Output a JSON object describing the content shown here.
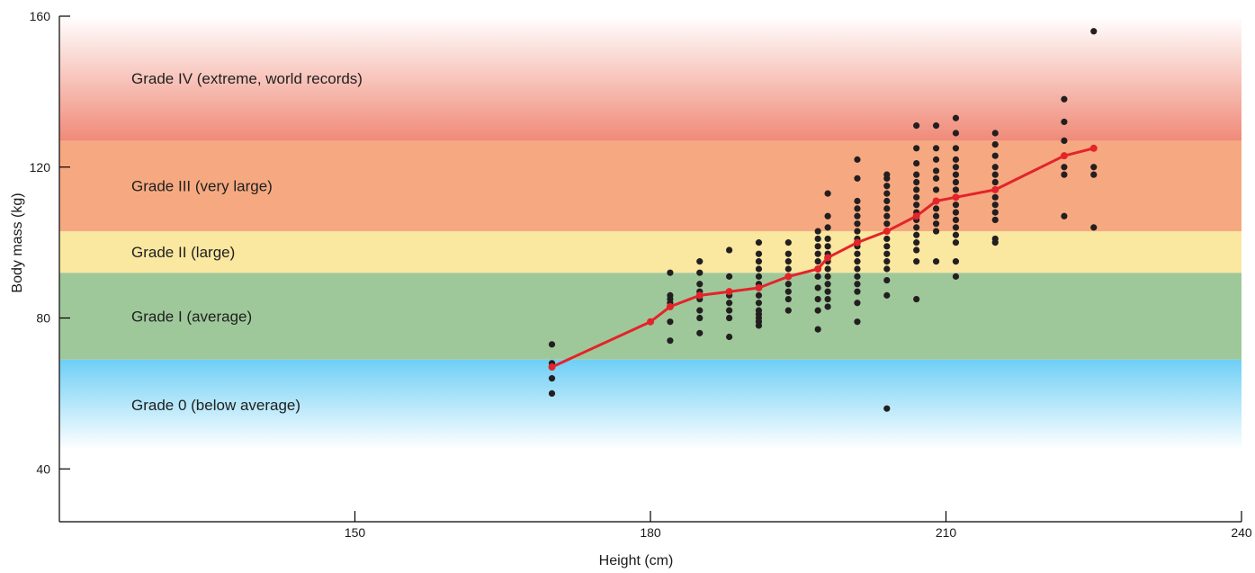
{
  "chart_data": {
    "type": "scatter",
    "xlabel": "Height (cm)",
    "ylabel": "Body mass (kg)",
    "xlim": [
      120,
      240
    ],
    "ylim": [
      26,
      160
    ],
    "x_ticks": [
      150,
      180,
      210,
      240
    ],
    "y_ticks": [
      40,
      80,
      120,
      160
    ],
    "grid": false,
    "bands": [
      {
        "label": "Grade 0 (below average)",
        "from": 45,
        "to": 69,
        "color": "#6ecff5",
        "fade": "down"
      },
      {
        "label": "Grade I (average)",
        "from": 69,
        "to": 92,
        "color": "#9fc89a"
      },
      {
        "label": "Grade II (large)",
        "from": 92,
        "to": 103,
        "color": "#fae7a0"
      },
      {
        "label": "Grade III (very large)",
        "from": 103,
        "to": 127,
        "color": "#f6a980"
      },
      {
        "label": "Grade IV (extreme, world records)",
        "from": 127,
        "to": 160,
        "color": "#f08a78",
        "fade": "up"
      }
    ],
    "points": [
      [
        170,
        73
      ],
      [
        170,
        68
      ],
      [
        170,
        64
      ],
      [
        170,
        60
      ],
      [
        182,
        92
      ],
      [
        182,
        86
      ],
      [
        182,
        85
      ],
      [
        182,
        84
      ],
      [
        182,
        83
      ],
      [
        182,
        79
      ],
      [
        182,
        74
      ],
      [
        185,
        95
      ],
      [
        185,
        92
      ],
      [
        185,
        89
      ],
      [
        185,
        87
      ],
      [
        185,
        85
      ],
      [
        185,
        82
      ],
      [
        185,
        80
      ],
      [
        185,
        76
      ],
      [
        188,
        98
      ],
      [
        188,
        91
      ],
      [
        188,
        86
      ],
      [
        188,
        84
      ],
      [
        188,
        82
      ],
      [
        188,
        80
      ],
      [
        188,
        75
      ],
      [
        191,
        100
      ],
      [
        191,
        97
      ],
      [
        191,
        95
      ],
      [
        191,
        93
      ],
      [
        191,
        91
      ],
      [
        191,
        89
      ],
      [
        191,
        88
      ],
      [
        191,
        86
      ],
      [
        191,
        84
      ],
      [
        191,
        82
      ],
      [
        191,
        81
      ],
      [
        191,
        80
      ],
      [
        191,
        79
      ],
      [
        191,
        78
      ],
      [
        194,
        100
      ],
      [
        194,
        97
      ],
      [
        194,
        95
      ],
      [
        194,
        93
      ],
      [
        194,
        91
      ],
      [
        194,
        89
      ],
      [
        194,
        87
      ],
      [
        194,
        85
      ],
      [
        194,
        82
      ],
      [
        197,
        103
      ],
      [
        197,
        101
      ],
      [
        197,
        99
      ],
      [
        197,
        97
      ],
      [
        197,
        95
      ],
      [
        197,
        93
      ],
      [
        197,
        91
      ],
      [
        197,
        88
      ],
      [
        197,
        85
      ],
      [
        197,
        82
      ],
      [
        197,
        77
      ],
      [
        198,
        113
      ],
      [
        198,
        107
      ],
      [
        198,
        104
      ],
      [
        198,
        101
      ],
      [
        198,
        99
      ],
      [
        198,
        97
      ],
      [
        198,
        95
      ],
      [
        198,
        93
      ],
      [
        198,
        91
      ],
      [
        198,
        89
      ],
      [
        198,
        87
      ],
      [
        198,
        85
      ],
      [
        198,
        83
      ],
      [
        201,
        122
      ],
      [
        201,
        117
      ],
      [
        201,
        111
      ],
      [
        201,
        109
      ],
      [
        201,
        107
      ],
      [
        201,
        105
      ],
      [
        201,
        103
      ],
      [
        201,
        101
      ],
      [
        201,
        99
      ],
      [
        201,
        97
      ],
      [
        201,
        95
      ],
      [
        201,
        93
      ],
      [
        201,
        91
      ],
      [
        201,
        89
      ],
      [
        201,
        87
      ],
      [
        201,
        84
      ],
      [
        201,
        79
      ],
      [
        204,
        118
      ],
      [
        204,
        117
      ],
      [
        204,
        115
      ],
      [
        204,
        113
      ],
      [
        204,
        111
      ],
      [
        204,
        109
      ],
      [
        204,
        107
      ],
      [
        204,
        105
      ],
      [
        204,
        103
      ],
      [
        204,
        101
      ],
      [
        204,
        99
      ],
      [
        204,
        97
      ],
      [
        204,
        95
      ],
      [
        204,
        93
      ],
      [
        204,
        90
      ],
      [
        204,
        86
      ],
      [
        204,
        56
      ],
      [
        207,
        131
      ],
      [
        207,
        125
      ],
      [
        207,
        121
      ],
      [
        207,
        118
      ],
      [
        207,
        116
      ],
      [
        207,
        114
      ],
      [
        207,
        112
      ],
      [
        207,
        110
      ],
      [
        207,
        108
      ],
      [
        207,
        106
      ],
      [
        207,
        104
      ],
      [
        207,
        102
      ],
      [
        207,
        100
      ],
      [
        207,
        98
      ],
      [
        207,
        95
      ],
      [
        207,
        85
      ],
      [
        209,
        131
      ],
      [
        209,
        125
      ],
      [
        209,
        122
      ],
      [
        209,
        119
      ],
      [
        209,
        117
      ],
      [
        209,
        114
      ],
      [
        209,
        111
      ],
      [
        209,
        109
      ],
      [
        209,
        107
      ],
      [
        209,
        105
      ],
      [
        209,
        103
      ],
      [
        209,
        95
      ],
      [
        211,
        133
      ],
      [
        211,
        129
      ],
      [
        211,
        125
      ],
      [
        211,
        122
      ],
      [
        211,
        120
      ],
      [
        211,
        118
      ],
      [
        211,
        116
      ],
      [
        211,
        114
      ],
      [
        211,
        112
      ],
      [
        211,
        110
      ],
      [
        211,
        108
      ],
      [
        211,
        106
      ],
      [
        211,
        104
      ],
      [
        211,
        102
      ],
      [
        211,
        100
      ],
      [
        211,
        95
      ],
      [
        211,
        91
      ],
      [
        215,
        129
      ],
      [
        215,
        126
      ],
      [
        215,
        123
      ],
      [
        215,
        120
      ],
      [
        215,
        118
      ],
      [
        215,
        116
      ],
      [
        215,
        114
      ],
      [
        215,
        112
      ],
      [
        215,
        110
      ],
      [
        215,
        108
      ],
      [
        215,
        106
      ],
      [
        215,
        101
      ],
      [
        215,
        100
      ],
      [
        222,
        138
      ],
      [
        222,
        132
      ],
      [
        222,
        127
      ],
      [
        222,
        123
      ],
      [
        222,
        120
      ],
      [
        222,
        118
      ],
      [
        222,
        107
      ],
      [
        225,
        156
      ],
      [
        225,
        125
      ],
      [
        225,
        120
      ],
      [
        225,
        118
      ],
      [
        225,
        104
      ]
    ],
    "series": [
      {
        "points": [
          [
            170,
            67
          ],
          [
            180,
            79
          ],
          [
            182,
            83
          ],
          [
            185,
            86
          ],
          [
            188,
            87
          ],
          [
            191,
            88
          ],
          [
            194,
            91
          ],
          [
            197,
            93
          ],
          [
            198,
            96
          ],
          [
            201,
            100
          ],
          [
            204,
            103
          ],
          [
            207,
            107
          ],
          [
            209,
            111
          ],
          [
            211,
            112
          ],
          [
            215,
            114
          ],
          [
            222,
            123
          ],
          [
            225,
            125
          ]
        ]
      }
    ]
  }
}
